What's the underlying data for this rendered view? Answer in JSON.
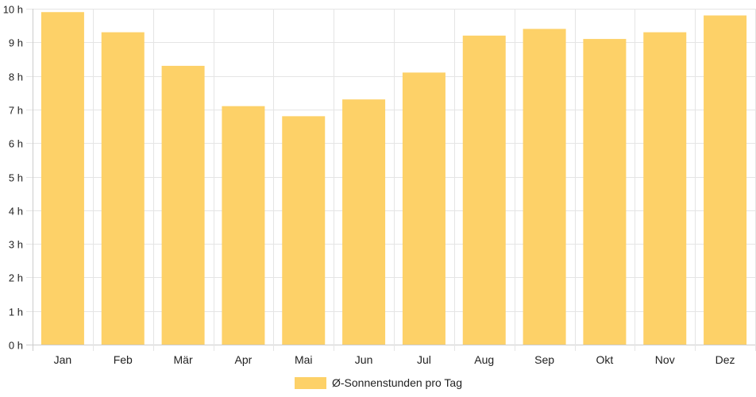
{
  "chart_data": {
    "type": "bar",
    "categories": [
      "Jan",
      "Feb",
      "Mär",
      "Apr",
      "Mai",
      "Jun",
      "Jul",
      "Aug",
      "Sep",
      "Okt",
      "Nov",
      "Dez"
    ],
    "series": [
      {
        "name": "Ø-Sonnenstunden pro Tag",
        "values": [
          9.9,
          9.3,
          8.3,
          7.1,
          6.8,
          7.3,
          8.1,
          9.2,
          9.4,
          9.1,
          9.3,
          9.8
        ],
        "color": "#fdd168"
      }
    ],
    "y_ticks": [
      "0 h",
      "1 h",
      "2 h",
      "3 h",
      "4 h",
      "5 h",
      "6 h",
      "7 h",
      "8 h",
      "9 h",
      "10 h"
    ],
    "ylim": [
      0,
      10
    ],
    "grid": true,
    "legend_position": "bottom",
    "colors": {
      "grid": "#e5e5e5",
      "axis": "#cccccc",
      "text": "#222222"
    }
  }
}
